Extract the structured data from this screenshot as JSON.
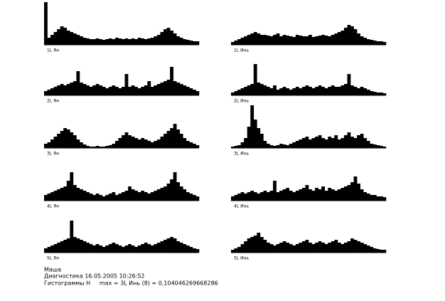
{
  "chart_data": [
    {
      "type": "bar",
      "title": "1L Ян",
      "color": "#000000",
      "ylim": [
        0,
        60
      ],
      "values": [
        60,
        10,
        14,
        18,
        22,
        26,
        24,
        20,
        18,
        16,
        14,
        12,
        10,
        9,
        8,
        8,
        9,
        8,
        7,
        8,
        9,
        8,
        10,
        9,
        8,
        9,
        8,
        9,
        8,
        10,
        9,
        8,
        9,
        10,
        12,
        14,
        18,
        22,
        24,
        20,
        16,
        12,
        10,
        8,
        7,
        6,
        5,
        5
      ]
    },
    {
      "type": "bar",
      "title": "1L Инь",
      "color": "#000000",
      "ylim": [
        0,
        60
      ],
      "values": [
        4,
        6,
        8,
        10,
        12,
        14,
        16,
        18,
        16,
        14,
        14,
        13,
        12,
        14,
        16,
        12,
        14,
        13,
        12,
        11,
        14,
        13,
        12,
        12,
        14,
        11,
        12,
        13,
        14,
        13,
        12,
        14,
        16,
        18,
        20,
        24,
        28,
        26,
        22,
        16,
        12,
        10,
        8,
        7,
        6,
        5,
        5,
        4
      ]
    },
    {
      "type": "bar",
      "title": "2L Ян",
      "color": "#000000",
      "ylim": [
        0,
        60
      ],
      "values": [
        6,
        8,
        10,
        12,
        14,
        16,
        14,
        16,
        18,
        20,
        34,
        18,
        16,
        14,
        12,
        14,
        16,
        14,
        12,
        10,
        12,
        14,
        12,
        10,
        12,
        30,
        12,
        14,
        12,
        10,
        12,
        14,
        20,
        12,
        14,
        16,
        18,
        20,
        22,
        40,
        20,
        18,
        16,
        14,
        12,
        10,
        8,
        6
      ]
    },
    {
      "type": "bar",
      "title": "2L Инь",
      "color": "#000000",
      "ylim": [
        0,
        60
      ],
      "values": [
        4,
        6,
        8,
        10,
        12,
        14,
        16,
        44,
        18,
        16,
        14,
        12,
        10,
        14,
        8,
        10,
        12,
        10,
        8,
        10,
        12,
        10,
        12,
        14,
        12,
        10,
        12,
        14,
        12,
        10,
        12,
        14,
        12,
        12,
        14,
        16,
        30,
        14,
        12,
        10,
        12,
        10,
        8,
        6,
        5,
        4,
        4,
        3
      ]
    },
    {
      "type": "bar",
      "title": "3L Ян",
      "color": "#000000",
      "ylim": [
        0,
        60
      ],
      "values": [
        6,
        8,
        12,
        16,
        20,
        24,
        28,
        26,
        22,
        18,
        12,
        8,
        5,
        3,
        2,
        2,
        3,
        2,
        2,
        3,
        4,
        6,
        10,
        14,
        18,
        22,
        18,
        16,
        14,
        12,
        14,
        12,
        10,
        8,
        10,
        12,
        16,
        20,
        24,
        28,
        34,
        26,
        20,
        14,
        10,
        8,
        6,
        4
      ]
    },
    {
      "type": "bar",
      "title": "3L Инь",
      "color": "#000000",
      "ylim": [
        0,
        60
      ],
      "values": [
        2,
        3,
        4,
        8,
        14,
        30,
        60,
        40,
        28,
        20,
        10,
        6,
        4,
        3,
        4,
        6,
        5,
        4,
        6,
        8,
        10,
        12,
        14,
        16,
        12,
        14,
        16,
        18,
        14,
        12,
        16,
        14,
        18,
        12,
        14,
        18,
        22,
        16,
        14,
        18,
        20,
        14,
        10,
        6,
        5,
        4,
        3,
        2
      ]
    },
    {
      "type": "bar",
      "title": "4L Ян",
      "color": "#000000",
      "ylim": [
        0,
        60
      ],
      "values": [
        8,
        10,
        12,
        14,
        16,
        18,
        20,
        28,
        40,
        22,
        18,
        16,
        14,
        12,
        10,
        8,
        10,
        8,
        6,
        8,
        10,
        12,
        8,
        10,
        12,
        14,
        20,
        16,
        14,
        12,
        14,
        12,
        10,
        12,
        14,
        16,
        18,
        20,
        24,
        30,
        40,
        26,
        20,
        16,
        12,
        10,
        8,
        6
      ]
    },
    {
      "type": "bar",
      "title": "4L Инь",
      "color": "#000000",
      "ylim": [
        0,
        60
      ],
      "values": [
        6,
        8,
        10,
        12,
        10,
        12,
        14,
        12,
        10,
        12,
        14,
        12,
        14,
        28,
        12,
        14,
        16,
        18,
        14,
        12,
        14,
        16,
        18,
        22,
        16,
        14,
        18,
        16,
        20,
        14,
        18,
        16,
        14,
        16,
        18,
        20,
        22,
        26,
        34,
        24,
        16,
        12,
        10,
        8,
        8,
        6,
        6,
        5
      ]
    },
    {
      "type": "bar",
      "title": "5L Ян",
      "color": "#000000",
      "ylim": [
        0,
        60
      ],
      "values": [
        6,
        8,
        10,
        12,
        14,
        16,
        18,
        20,
        45,
        22,
        20,
        18,
        16,
        14,
        12,
        10,
        12,
        10,
        8,
        10,
        12,
        14,
        12,
        10,
        8,
        10,
        12,
        10,
        8,
        10,
        12,
        14,
        12,
        10,
        12,
        14,
        16,
        18,
        20,
        22,
        20,
        16,
        14,
        12,
        10,
        8,
        6,
        5
      ]
    },
    {
      "type": "bar",
      "title": "5L Инь",
      "color": "#000000",
      "ylim": [
        0,
        60
      ],
      "values": [
        4,
        6,
        8,
        12,
        16,
        20,
        22,
        24,
        28,
        22,
        18,
        14,
        12,
        10,
        12,
        14,
        16,
        14,
        12,
        10,
        12,
        14,
        16,
        18,
        14,
        12,
        14,
        16,
        14,
        12,
        14,
        16,
        18,
        14,
        12,
        14,
        16,
        20,
        18,
        16,
        14,
        12,
        10,
        8,
        6,
        5,
        4,
        4
      ]
    }
  ],
  "footer": {
    "name": "Маша",
    "diagnostics": "Диагностика 16.05.2005 10:26:52",
    "summary": "Гистограммы Н     max = 3L Инь (8) = 0,104046269668286"
  }
}
